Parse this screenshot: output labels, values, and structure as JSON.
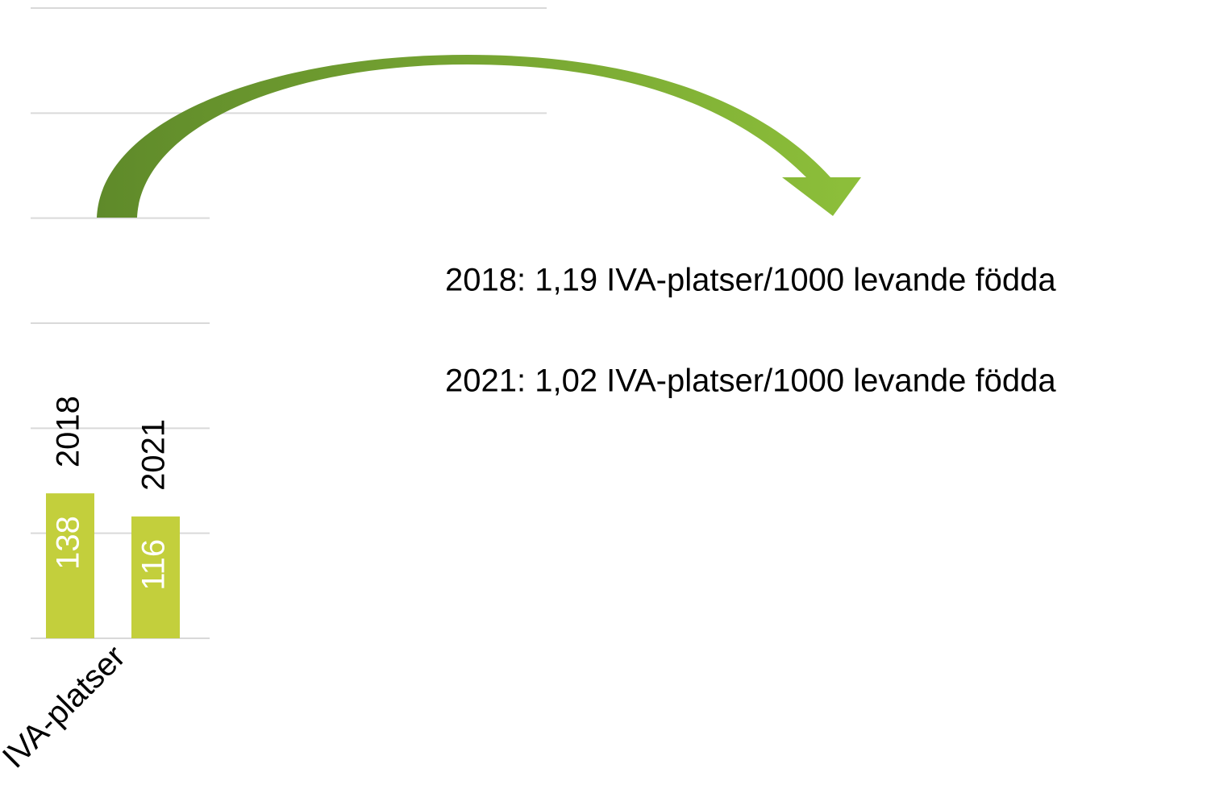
{
  "chart_data": {
    "type": "bar",
    "categories": [
      "IVA-platser"
    ],
    "series": [
      {
        "name": "2018",
        "color": "#c3cf3c",
        "values": [
          138
        ]
      },
      {
        "name": "2021",
        "color": "#c3cf3c",
        "values": [
          116
        ]
      }
    ],
    "ylim": [
      0,
      600
    ],
    "yticks": [
      0,
      100,
      200,
      300,
      400,
      500,
      600
    ],
    "grid": true,
    "annotations": [
      "2018: 1,19 IVA-platser/1000 levande födda",
      "2021: 1,02 IVA-platser/1000 levande födda"
    ]
  }
}
